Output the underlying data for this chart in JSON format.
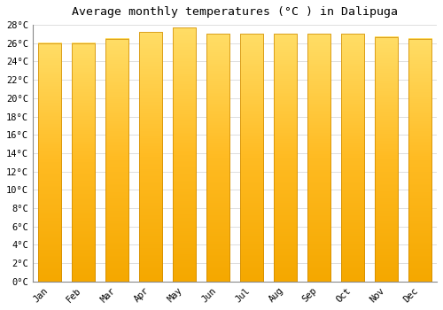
{
  "title": "Average monthly temperatures (°C ) in Dalipuga",
  "months": [
    "Jan",
    "Feb",
    "Mar",
    "Apr",
    "May",
    "Jun",
    "Jul",
    "Aug",
    "Sep",
    "Oct",
    "Nov",
    "Dec"
  ],
  "values": [
    26.0,
    26.0,
    26.5,
    27.2,
    27.7,
    27.0,
    27.0,
    27.0,
    27.0,
    27.0,
    26.7,
    26.5
  ],
  "bar_color_top": "#FFDD66",
  "bar_color_bottom": "#F5A800",
  "bar_color_mid": "#FFBB22",
  "background_color": "#FFFFFF",
  "plot_bg_color": "#FFFFFF",
  "ylim_min": 0,
  "ylim_max": 28,
  "ytick_step": 2,
  "title_fontsize": 9.5,
  "tick_fontsize": 7.5,
  "grid_color": "#DDDDDD",
  "bar_edge_color": "#CC8800",
  "bar_width": 0.7
}
